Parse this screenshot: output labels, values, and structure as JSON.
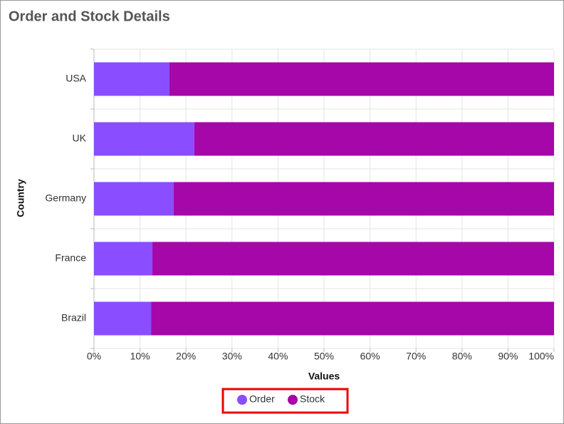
{
  "chart_data": {
    "type": "bar",
    "stacked": true,
    "orientation": "horizontal",
    "title": "Order and Stock Details",
    "x_label": "Values",
    "y_label": "Country",
    "categories": [
      "USA",
      "UK",
      "Germany",
      "France",
      "Brazil"
    ],
    "series": [
      {
        "name": "Order",
        "color": "#8a4dff",
        "values": [
          16.4,
          21.8,
          17.3,
          12.7,
          12.4
        ]
      },
      {
        "name": "Stock",
        "color": "#a507a8",
        "values": [
          83.6,
          78.2,
          82.7,
          87.3,
          87.6
        ]
      }
    ],
    "xlim": [
      0,
      100
    ],
    "xticks": [
      {
        "value": 0,
        "label": "0%"
      },
      {
        "value": 10,
        "label": "10%"
      },
      {
        "value": 20,
        "label": "20%"
      },
      {
        "value": 30,
        "label": "30%"
      },
      {
        "value": 40,
        "label": "40%"
      },
      {
        "value": 50,
        "label": "50%"
      },
      {
        "value": 60,
        "label": "60%"
      },
      {
        "value": 70,
        "label": "70%"
      },
      {
        "value": 80,
        "label": "80%"
      },
      {
        "value": 90,
        "label": "90%"
      },
      {
        "value": 100,
        "label": "100%"
      }
    ],
    "grid": true,
    "legend": "bottom"
  }
}
